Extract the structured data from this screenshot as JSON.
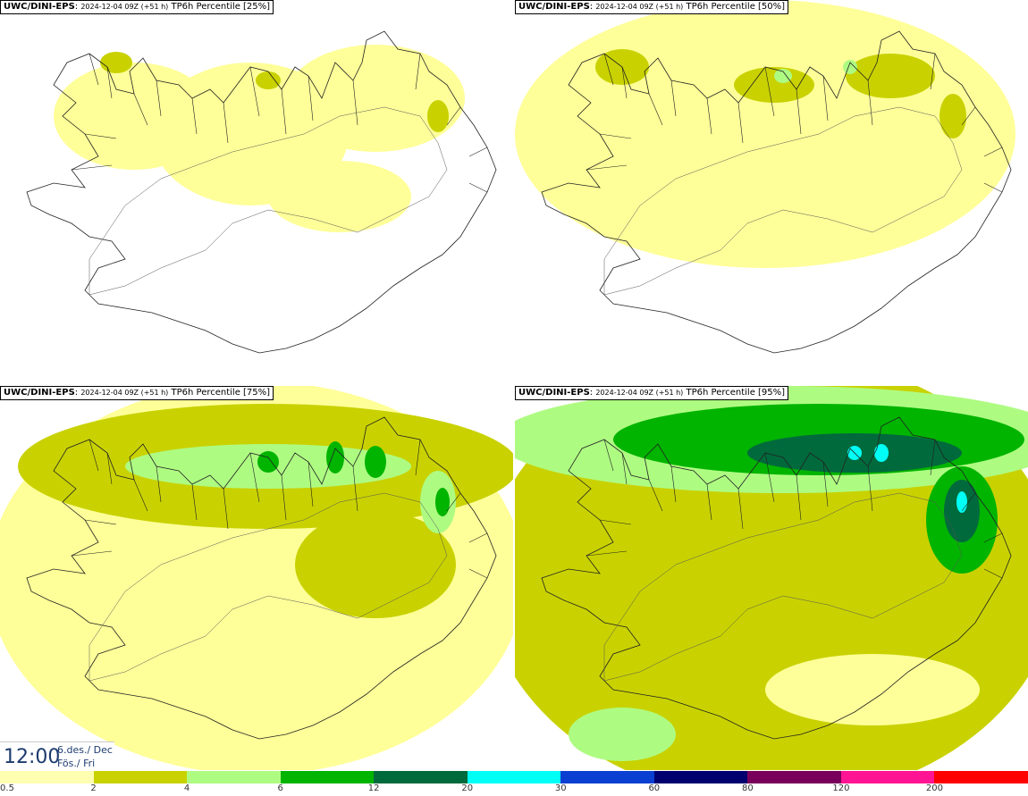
{
  "panels": [
    {
      "model": "UWC/DINI-EPS",
      "run": "2024-12-04 09Z (+51 h)",
      "param": "TP6h Percentile [25%]",
      "level": 1
    },
    {
      "model": "UWC/DINI-EPS",
      "run": "2024-12-04 09Z (+51 h)",
      "param": "TP6h Percentile [50%]",
      "level": 2
    },
    {
      "model": "UWC/DINI-EPS",
      "run": "2024-12-04 09Z (+51 h)",
      "param": "TP6h Percentile [75%]",
      "level": 3
    },
    {
      "model": "UWC/DINI-EPS",
      "run": "2024-12-04 09Z (+51 h)",
      "param": "TP6h Percentile [95%]",
      "level": 4
    }
  ],
  "time": {
    "clock": "12:00",
    "date": "6.des./ Dec",
    "day": "Fös./ Fri"
  },
  "legend": {
    "ticks": [
      "0.5",
      "2",
      "4",
      "6",
      "12",
      "20",
      "30",
      "60",
      "80",
      "120",
      "200"
    ],
    "colors": [
      "#ffffb2",
      "#c9d200",
      "#aefb82",
      "#00b400",
      "#006a3c",
      "#00fff5",
      "#0a3fd2",
      "#00006e",
      "#78005a",
      "#ff1493",
      "#ff0000"
    ]
  },
  "colors": {
    "outline": "#222222",
    "water": "#ffffff"
  }
}
